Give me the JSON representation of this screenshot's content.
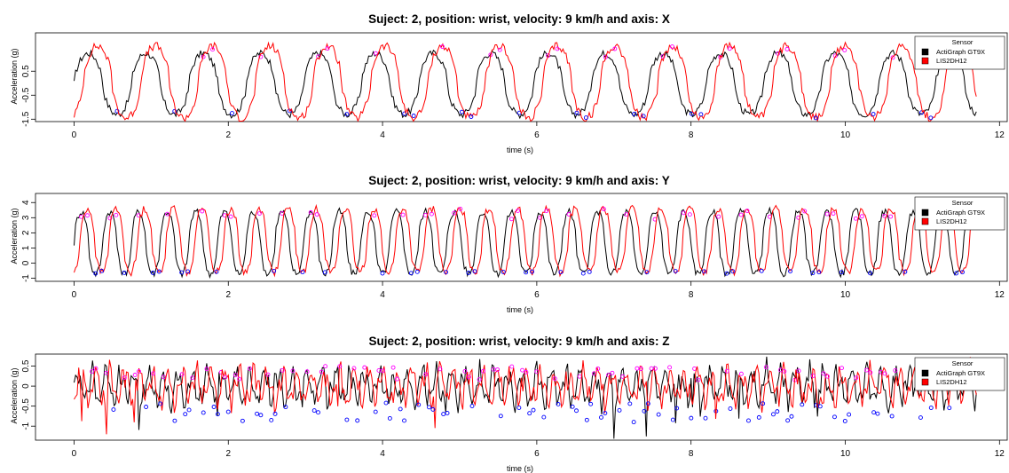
{
  "colors": {
    "actigraph": "#000000",
    "lis2dh12": "#ff0000",
    "minima_marker": "#0000ff",
    "maxima_marker": "#ff00ff"
  },
  "chart_data": [
    {
      "type": "line",
      "title": "Suject: 2, position: wrist, velocity: 9 km/h and axis: X",
      "xlabel": "time (s)",
      "ylabel": "Acceleration (g)",
      "xlim": [
        -0.5,
        12.1
      ],
      "ylim": [
        -1.6,
        2.1
      ],
      "xticks": [
        0,
        2,
        4,
        6,
        8,
        10,
        12
      ],
      "yticks": [
        -1.5,
        -0.5,
        0.5
      ],
      "legend": {
        "title": "Sensor",
        "position": "top-right",
        "entries": [
          "ActiGraph GT9X",
          "LIS2DH12"
        ]
      },
      "series": [
        {
          "name": "ActiGraph GT9X",
          "color": "#000000",
          "period": 0.745,
          "phase": 0.0,
          "min": -1.3,
          "max": 1.25,
          "peaks": [
            0.0,
            0.62,
            1.38,
            2.1,
            2.8,
            3.55,
            4.3,
            5.0,
            5.75,
            6.5,
            7.2,
            7.95,
            8.7,
            9.4,
            10.15,
            10.9
          ]
        },
        {
          "name": "LIS2DH12",
          "color": "#ff0000",
          "period": 0.745,
          "phase": 0.12,
          "min": -1.45,
          "max": 1.55,
          "peaks": [
            0.12,
            0.78,
            1.5,
            2.2,
            2.92,
            3.66,
            4.4,
            5.1,
            5.85,
            6.6,
            7.32,
            8.05,
            8.8,
            9.52,
            10.25,
            11.0
          ]
        }
      ],
      "minima_points": [
        0.28,
        1.0,
        1.62,
        2.38,
        3.08,
        3.82,
        4.55,
        5.28,
        6.0,
        6.75,
        7.48,
        8.22,
        8.98,
        9.7,
        10.45,
        11.2
      ],
      "maxima_points": [
        0.68,
        1.42,
        2.12,
        2.85,
        3.6,
        4.32,
        5.05,
        5.78,
        6.52,
        7.25,
        7.98,
        8.72,
        9.45,
        10.2,
        10.92
      ]
    },
    {
      "type": "line",
      "title": "Suject: 2, position: wrist, velocity: 9 km/h and axis: Y",
      "xlabel": "time (s)",
      "ylabel": "Acceleration (g)",
      "xlim": [
        -0.5,
        12.1
      ],
      "ylim": [
        -1.2,
        4.6
      ],
      "xticks": [
        0,
        2,
        4,
        6,
        8,
        10,
        12
      ],
      "yticks": [
        -1,
        0,
        1,
        2,
        3,
        4
      ],
      "legend": {
        "title": "Sensor",
        "position": "top-right",
        "entries": [
          "ActiGraph GT9X",
          "LIS2DH12"
        ]
      },
      "series": [
        {
          "name": "ActiGraph GT9X",
          "color": "#000000",
          "period": 0.372,
          "phase": 0.0,
          "min": -0.7,
          "max": 3.4
        },
        {
          "name": "LIS2DH12",
          "color": "#ff0000",
          "period": 0.372,
          "phase": 0.08,
          "min": -0.6,
          "max": 3.6
        }
      ]
    },
    {
      "type": "line",
      "title": "Suject: 2, position: wrist, velocity: 9 km/h and axis: Z",
      "xlabel": "time (s)",
      "ylabel": "Acceleration (g)",
      "xlim": [
        -0.5,
        12.1
      ],
      "ylim": [
        -1.35,
        0.8
      ],
      "xticks": [
        0,
        2,
        4,
        6,
        8,
        10,
        12
      ],
      "yticks": [
        -1.0,
        -0.5,
        0.0,
        0.5
      ],
      "legend": {
        "title": "Sensor",
        "position": "top-right",
        "entries": [
          "ActiGraph GT9X",
          "LIS2DH12"
        ]
      },
      "series": [
        {
          "name": "ActiGraph GT9X",
          "color": "#000000",
          "period": 0.186,
          "phase": 0.0,
          "min": -1.2,
          "max": 0.7
        },
        {
          "name": "LIS2DH12",
          "color": "#ff0000",
          "period": 0.186,
          "phase": 0.05,
          "min": -1.3,
          "max": 0.65
        }
      ]
    }
  ]
}
